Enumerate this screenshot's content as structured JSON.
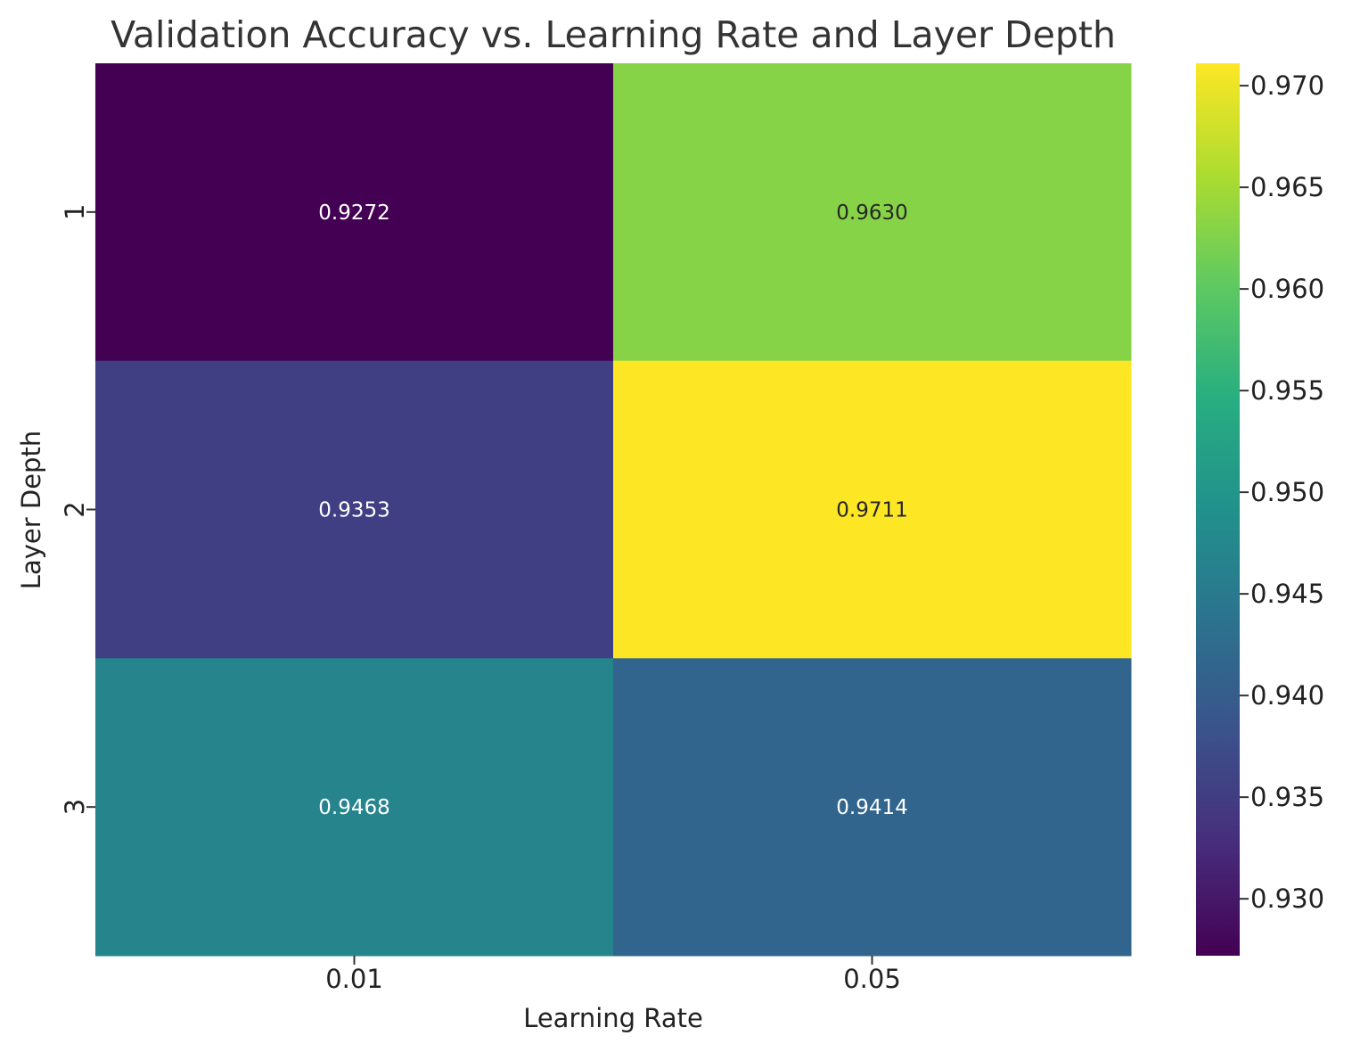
{
  "chart_data": {
    "type": "heatmap",
    "title": "Validation Accuracy vs. Learning Rate and Layer Depth",
    "xlabel": "Learning Rate",
    "ylabel": "Layer Depth",
    "x_categories": [
      "0.01",
      "0.05"
    ],
    "y_categories": [
      "1",
      "2",
      "3"
    ],
    "values": [
      [
        0.9272,
        0.963
      ],
      [
        0.9353,
        0.9711
      ],
      [
        0.9468,
        0.9414
      ]
    ],
    "value_labels": [
      [
        "0.9272",
        "0.9630"
      ],
      [
        "0.9353",
        "0.9711"
      ],
      [
        "0.9468",
        "0.9414"
      ]
    ],
    "colormap": "viridis",
    "colorbar": {
      "min": 0.9272,
      "max": 0.9711,
      "ticks": [
        "0.930",
        "0.935",
        "0.940",
        "0.945",
        "0.950",
        "0.955",
        "0.960",
        "0.965",
        "0.970"
      ]
    },
    "annotation_colors": {
      "dark": "#262626",
      "light": "#ffffff"
    }
  }
}
